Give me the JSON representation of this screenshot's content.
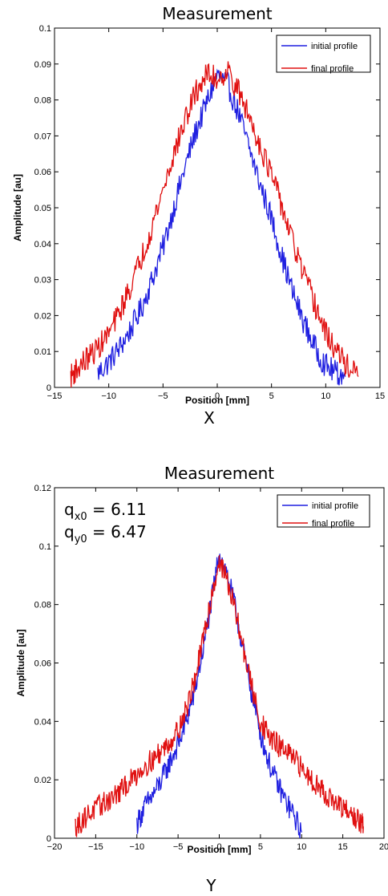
{
  "chart_data": [
    {
      "type": "line",
      "title": "Measurement",
      "xlabel": "Position [mm]",
      "ylabel": "Amplitude [au]",
      "caption": "X",
      "xlim": [
        -15,
        15
      ],
      "ylim": [
        0,
        0.1
      ],
      "x_ticks": [
        -15,
        -10,
        -5,
        0,
        5,
        10,
        15
      ],
      "x_tick_labels": [
        "−15",
        "−10",
        "−5",
        "0",
        "5",
        "10",
        "15"
      ],
      "y_ticks": [
        0,
        0.01,
        0.02,
        0.03,
        0.04,
        0.05,
        0.06,
        0.07,
        0.08,
        0.09,
        0.1
      ],
      "y_tick_labels": [
        "0",
        "0.01",
        "0.02",
        "0.03",
        "0.04",
        "0.05",
        "0.06",
        "0.07",
        "0.08",
        "0.09",
        "0.1"
      ],
      "grid": false,
      "legend_position": "top-right",
      "annotations": [],
      "series": [
        {
          "name": "initial profile",
          "color": "#1f1fe0",
          "noise": 0.0035,
          "x": [
            -11,
            -10,
            -9,
            -8,
            -7,
            -6,
            -5,
            -4,
            -3,
            -2,
            -1,
            0,
            1,
            2,
            3,
            4,
            5,
            6,
            7,
            8,
            9,
            10,
            11,
            11.8
          ],
          "y": [
            0.004,
            0.007,
            0.011,
            0.016,
            0.022,
            0.03,
            0.039,
            0.05,
            0.061,
            0.071,
            0.079,
            0.087,
            0.084,
            0.076,
            0.066,
            0.056,
            0.047,
            0.036,
            0.026,
            0.018,
            0.011,
            0.006,
            0.004,
            0.003
          ]
        },
        {
          "name": "final profile",
          "color": "#e01010",
          "noise": 0.0035,
          "x": [
            -13.5,
            -13,
            -12,
            -11,
            -10,
            -9,
            -8,
            -7,
            -6,
            -5,
            -4,
            -3,
            -2,
            -1,
            0,
            1,
            2,
            3,
            4,
            5,
            6,
            7,
            8,
            9,
            10,
            11,
            12,
            13
          ],
          "y": [
            0.003,
            0.005,
            0.008,
            0.011,
            0.015,
            0.021,
            0.028,
            0.036,
            0.045,
            0.055,
            0.065,
            0.074,
            0.082,
            0.087,
            0.086,
            0.088,
            0.082,
            0.075,
            0.067,
            0.059,
            0.05,
            0.04,
            0.031,
            0.023,
            0.015,
            0.01,
            0.006,
            0.003
          ]
        }
      ]
    },
    {
      "type": "line",
      "title": "Measurement",
      "xlabel": "Position [mm]",
      "ylabel": "Amplitude [au]",
      "caption": "Y",
      "xlim": [
        -20,
        20
      ],
      "ylim": [
        0,
        0.12
      ],
      "x_ticks": [
        -20,
        -15,
        -10,
        -5,
        0,
        5,
        10,
        15,
        20
      ],
      "x_tick_labels": [
        "−20",
        "−15",
        "−10",
        "−5",
        "0",
        "5",
        "10",
        "15",
        "20"
      ],
      "y_ticks": [
        0,
        0.02,
        0.04,
        0.06,
        0.08,
        0.1,
        0.12
      ],
      "y_tick_labels": [
        "0",
        "0.02",
        "0.04",
        "0.06",
        "0.08",
        "0.1",
        "0.12"
      ],
      "grid": false,
      "legend_position": "top-right",
      "annotations": [
        {
          "main": "q",
          "sub": "x0",
          "rest": " = 6.11"
        },
        {
          "main": "q",
          "sub": "y0",
          "rest": " = 6.47"
        }
      ],
      "series": [
        {
          "name": "initial profile",
          "color": "#1f1fe0",
          "noise": 0.004,
          "x": [
            -10,
            -9,
            -8,
            -7,
            -6,
            -5,
            -4,
            -3,
            -2,
            -1,
            0,
            1,
            2,
            3,
            4,
            5,
            6,
            7,
            8,
            9,
            10
          ],
          "y": [
            0.005,
            0.011,
            0.015,
            0.02,
            0.026,
            0.032,
            0.04,
            0.05,
            0.064,
            0.08,
            0.098,
            0.09,
            0.078,
            0.063,
            0.049,
            0.036,
            0.026,
            0.019,
            0.013,
            0.008,
            0.002
          ]
        },
        {
          "name": "final profile",
          "color": "#e01010",
          "noise": 0.004,
          "x": [
            -17.5,
            -17,
            -16,
            -15,
            -14,
            -13,
            -12,
            -11,
            -10,
            -9,
            -8,
            -7,
            -6,
            -5,
            -4,
            -3,
            -2,
            -1,
            0,
            1,
            2,
            3,
            4,
            5,
            6,
            7,
            8,
            9,
            10,
            11,
            12,
            13,
            14,
            15,
            16,
            17,
            17.5
          ],
          "y": [
            0.004,
            0.005,
            0.008,
            0.01,
            0.012,
            0.014,
            0.016,
            0.019,
            0.022,
            0.025,
            0.027,
            0.03,
            0.033,
            0.037,
            0.044,
            0.054,
            0.067,
            0.082,
            0.095,
            0.088,
            0.077,
            0.064,
            0.051,
            0.04,
            0.035,
            0.032,
            0.03,
            0.027,
            0.024,
            0.021,
            0.018,
            0.015,
            0.012,
            0.01,
            0.008,
            0.006,
            0.004
          ]
        }
      ]
    }
  ]
}
